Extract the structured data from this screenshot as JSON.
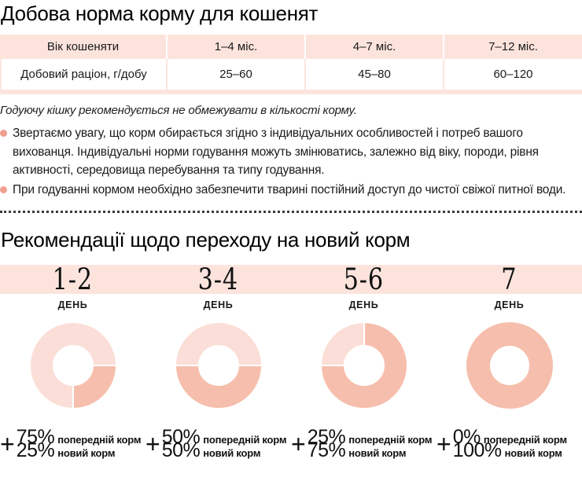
{
  "section1": {
    "title": "Добова норма корму для кошенят",
    "table": {
      "header": [
        "Вік кошеняти",
        "1–4 міс.",
        "4–7 міс.",
        "7–12 міс."
      ],
      "row": [
        "Добовий раціон, г/добу",
        "25–60",
        "45–80",
        "60–120"
      ]
    },
    "italic_note": "Годуючу кішку рекомендується не обмежувати в кількості корму.",
    "bullets": [
      "Звертаємо увагу, що корм обирається згідно з індивідуальних особливостей і потреб вашого вихованця. Індивідуальні норми годування можуть змінюватись, залежно від віку, породи, рівня активності, середовища перебування та типу годування.",
      "При годуванні кормом необхідно забезпечити тварині постійний доступ до чистої свіжої питної води."
    ]
  },
  "section2": {
    "title": "Рекомендації щодо переходу на новий корм",
    "day_word": "ДЕНЬ",
    "plus_sign": "+",
    "prev_label": "попередній корм",
    "new_label": "новий корм",
    "days": [
      {
        "range": "1-2",
        "prev_pct": "75%",
        "new_pct": "25%",
        "segments": [
          {
            "shade": "light",
            "start": 180,
            "sweep": 270
          },
          {
            "shade": "dark",
            "start": 90,
            "sweep": 90
          }
        ]
      },
      {
        "range": "3-4",
        "prev_pct": "50%",
        "new_pct": "50%",
        "segments": [
          {
            "shade": "light",
            "start": 270,
            "sweep": 180
          },
          {
            "shade": "dark",
            "start": 90,
            "sweep": 180
          }
        ]
      },
      {
        "range": "5-6",
        "prev_pct": "25%",
        "new_pct": "75%",
        "segments": [
          {
            "shade": "light",
            "start": 270,
            "sweep": 90
          },
          {
            "shade": "dark",
            "start": 0,
            "sweep": 270
          }
        ]
      },
      {
        "range": "7",
        "prev_pct": "0%",
        "new_pct": "100%",
        "segments": [
          {
            "shade": "dark",
            "start": 0,
            "sweep": 360
          }
        ]
      }
    ]
  },
  "chart_data": [
    {
      "type": "pie",
      "title": "День 1-2",
      "labels": [
        "попередній корм",
        "новий корм"
      ],
      "values": [
        75,
        25
      ]
    },
    {
      "type": "pie",
      "title": "День 3-4",
      "labels": [
        "попередній корм",
        "новий корм"
      ],
      "values": [
        50,
        50
      ]
    },
    {
      "type": "pie",
      "title": "День 5-6",
      "labels": [
        "попередній корм",
        "новий корм"
      ],
      "values": [
        25,
        75
      ]
    },
    {
      "type": "pie",
      "title": "День 7",
      "labels": [
        "попередній корм",
        "новий корм"
      ],
      "values": [
        0,
        100
      ]
    }
  ],
  "colors": {
    "band_pink": "#fce4dd",
    "donut_light": "#fbded7",
    "donut_dark": "#f6beac",
    "bullet": "#f09e8d",
    "dotted_line": "#3a3a3a"
  }
}
